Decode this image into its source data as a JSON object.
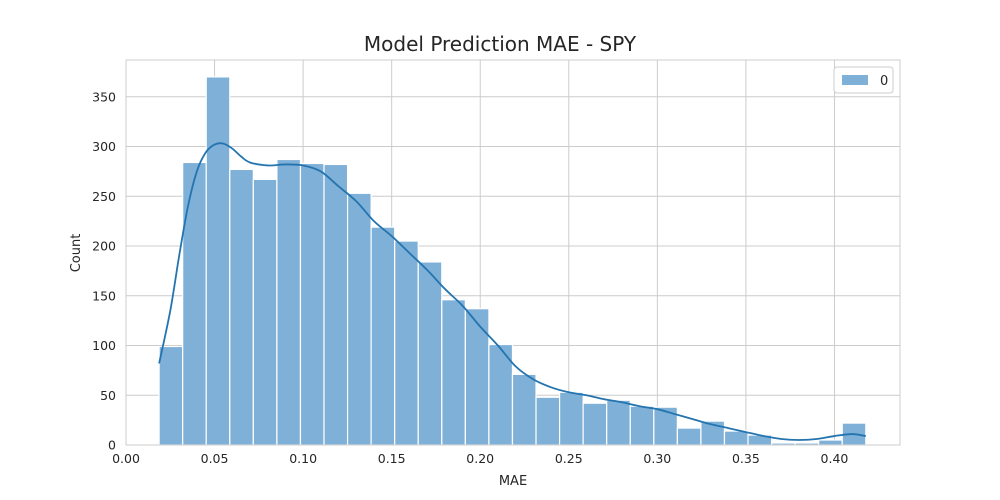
{
  "chart_data": {
    "type": "bar",
    "title": "Model Prediction MAE - SPY",
    "xlabel": "MAE",
    "ylabel": "Count",
    "xlim": [
      0.0,
      0.437
    ],
    "ylim": [
      0,
      387
    ],
    "xticks": [
      "0.00",
      "0.05",
      "0.10",
      "0.15",
      "0.20",
      "0.25",
      "0.30",
      "0.35",
      "0.40"
    ],
    "yticks": [
      "0",
      "50",
      "100",
      "150",
      "200",
      "250",
      "300",
      "350"
    ],
    "grid": true,
    "legend": {
      "position": "top-right",
      "entries": [
        "0"
      ]
    },
    "bin_edges": [
      0.0187,
      0.032,
      0.0453,
      0.0586,
      0.0719,
      0.0852,
      0.0985,
      0.1118,
      0.1251,
      0.1384,
      0.1517,
      0.165,
      0.1783,
      0.1916,
      0.2049,
      0.2182,
      0.2315,
      0.2448,
      0.2581,
      0.2714,
      0.2847,
      0.298,
      0.3113,
      0.3246,
      0.3379,
      0.3512,
      0.3645,
      0.3778,
      0.3911,
      0.4044,
      0.4177
    ],
    "series": [
      {
        "name": "0",
        "values": [
          99,
          284,
          370,
          277,
          267,
          287,
          283,
          282,
          253,
          219,
          205,
          184,
          146,
          137,
          101,
          71,
          48,
          53,
          42,
          45,
          39,
          38,
          17,
          24,
          14,
          10,
          2,
          2,
          5,
          22
        ]
      }
    ],
    "kde": {
      "x": [
        0.0187,
        0.025,
        0.03,
        0.035,
        0.04,
        0.045,
        0.05,
        0.055,
        0.06,
        0.065,
        0.07,
        0.08,
        0.09,
        0.1,
        0.11,
        0.12,
        0.13,
        0.14,
        0.15,
        0.16,
        0.17,
        0.18,
        0.19,
        0.2,
        0.21,
        0.22,
        0.23,
        0.24,
        0.25,
        0.26,
        0.27,
        0.28,
        0.29,
        0.3,
        0.31,
        0.32,
        0.33,
        0.34,
        0.35,
        0.36,
        0.37,
        0.38,
        0.39,
        0.4,
        0.41,
        0.4177
      ],
      "y": [
        82,
        135,
        190,
        240,
        275,
        294,
        302,
        303,
        298,
        290,
        284,
        281,
        282,
        281,
        275,
        260,
        245,
        225,
        210,
        193,
        176,
        157,
        140,
        119,
        100,
        79,
        66,
        58,
        53,
        50,
        46,
        43,
        39,
        36,
        31,
        26,
        21,
        17,
        13,
        9,
        6,
        5,
        6,
        9,
        11,
        9
      ]
    },
    "colors": {
      "bar": "#7fb0d7",
      "kde": "#2474b0",
      "grid": "#cccccc",
      "bar_edge": "#ffffff"
    }
  }
}
